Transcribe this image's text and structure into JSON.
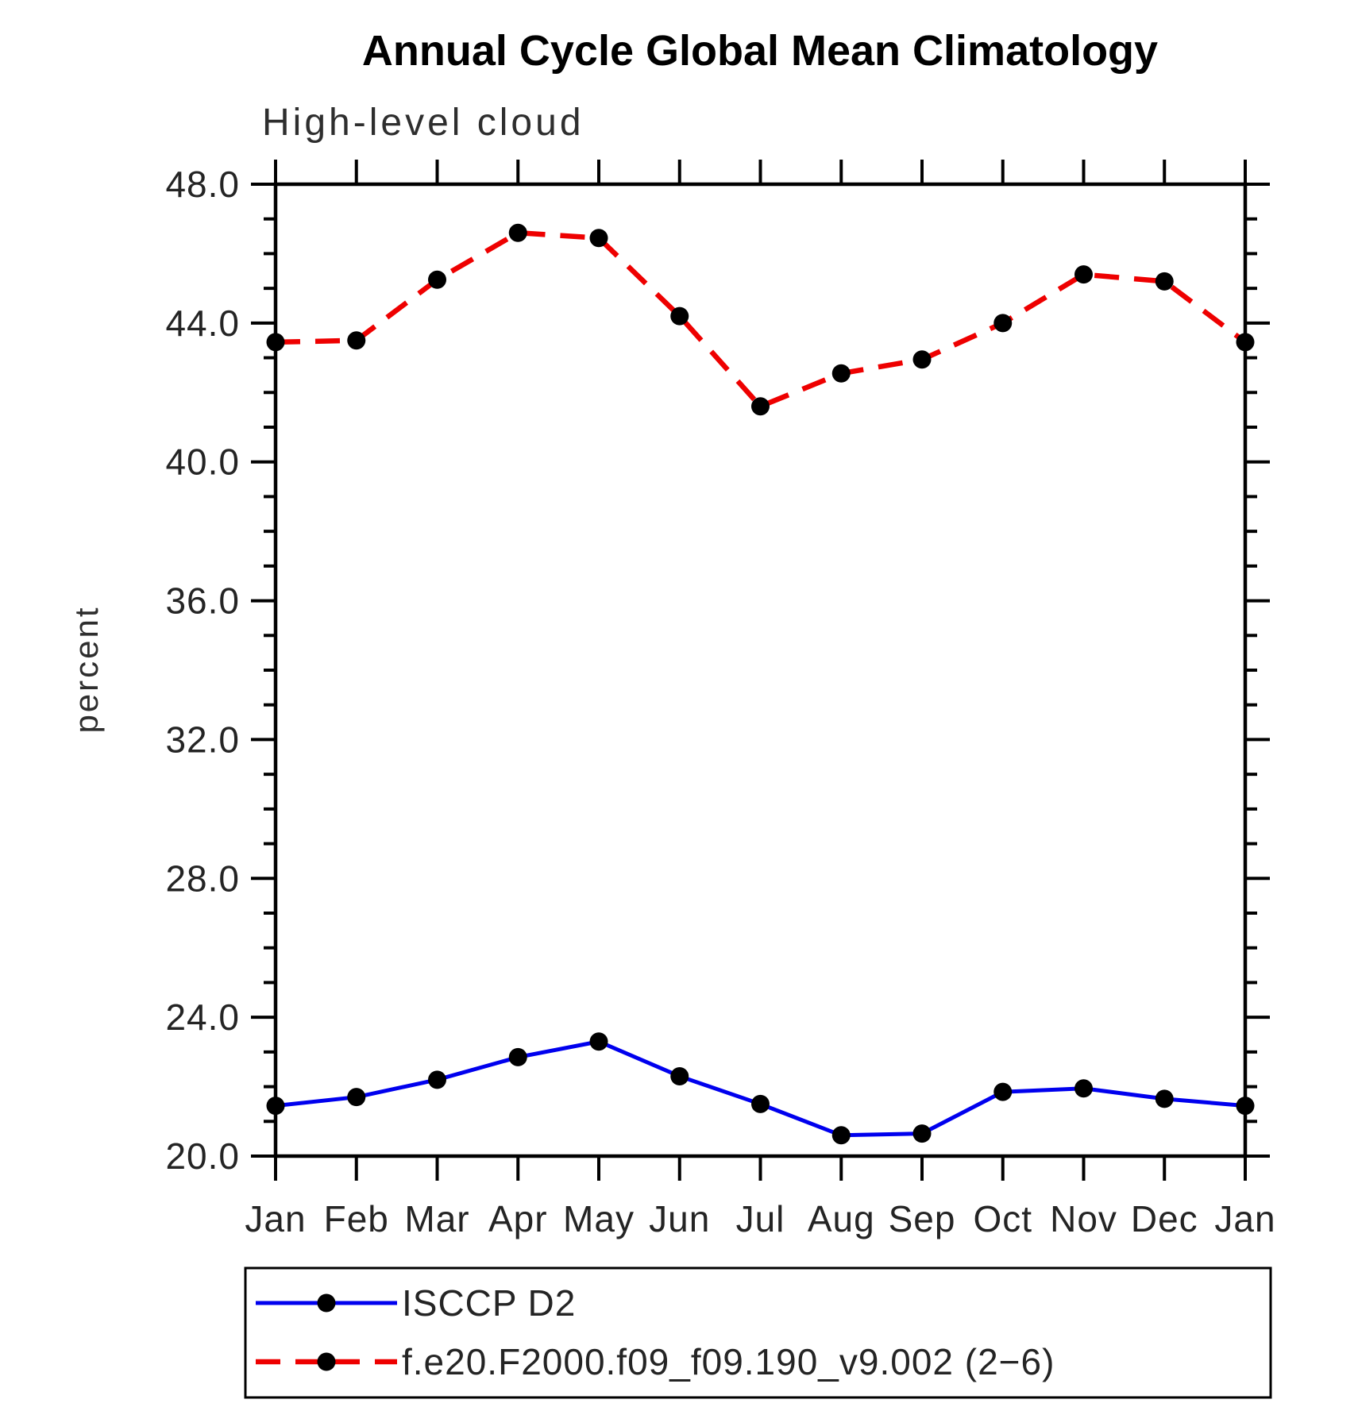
{
  "header": {
    "title": "Annual Cycle Global Mean Climatology",
    "subtitle": "High-level cloud"
  },
  "chart_data": {
    "type": "line",
    "title": "Annual Cycle Global Mean Climatology",
    "subtitle": "High-level cloud",
    "xlabel": "",
    "ylabel": "percent",
    "x_categories": [
      "Jan",
      "Feb",
      "Mar",
      "Apr",
      "May",
      "Jun",
      "Jul",
      "Aug",
      "Sep",
      "Oct",
      "Nov",
      "Dec",
      "Jan"
    ],
    "ylim": [
      20,
      48
    ],
    "y_minor_tick_step": 1,
    "y_major_tick_step": 4,
    "grid": false,
    "legend_position": "bottom-left-box",
    "y_ticks": [
      {
        "value": 48,
        "label": "48.0"
      },
      {
        "value": 44,
        "label": "44.0"
      },
      {
        "value": 40,
        "label": "40.0"
      },
      {
        "value": 36,
        "label": "36.0"
      },
      {
        "value": 32,
        "label": "32.0"
      },
      {
        "value": 28,
        "label": "28.0"
      },
      {
        "value": 24,
        "label": "24.0"
      },
      {
        "value": 20,
        "label": "20.0"
      }
    ],
    "series": [
      {
        "name": "ISCCP D2",
        "color": "#0000ee",
        "style": "solid",
        "marker": "circle",
        "marker_color": "#000000",
        "values": [
          21.45,
          21.7,
          22.2,
          22.85,
          23.3,
          22.3,
          21.5,
          20.6,
          20.65,
          21.85,
          21.95,
          21.65,
          21.45
        ]
      },
      {
        "name": "f.e20.F2000.f09_f09.190_v9.002 (2−6)",
        "color": "#ee0000",
        "style": "dashed",
        "marker": "circle",
        "marker_color": "#000000",
        "values": [
          43.45,
          43.5,
          45.25,
          46.6,
          46.45,
          44.2,
          41.6,
          42.55,
          42.95,
          44.0,
          45.4,
          45.2,
          43.45
        ]
      }
    ]
  }
}
